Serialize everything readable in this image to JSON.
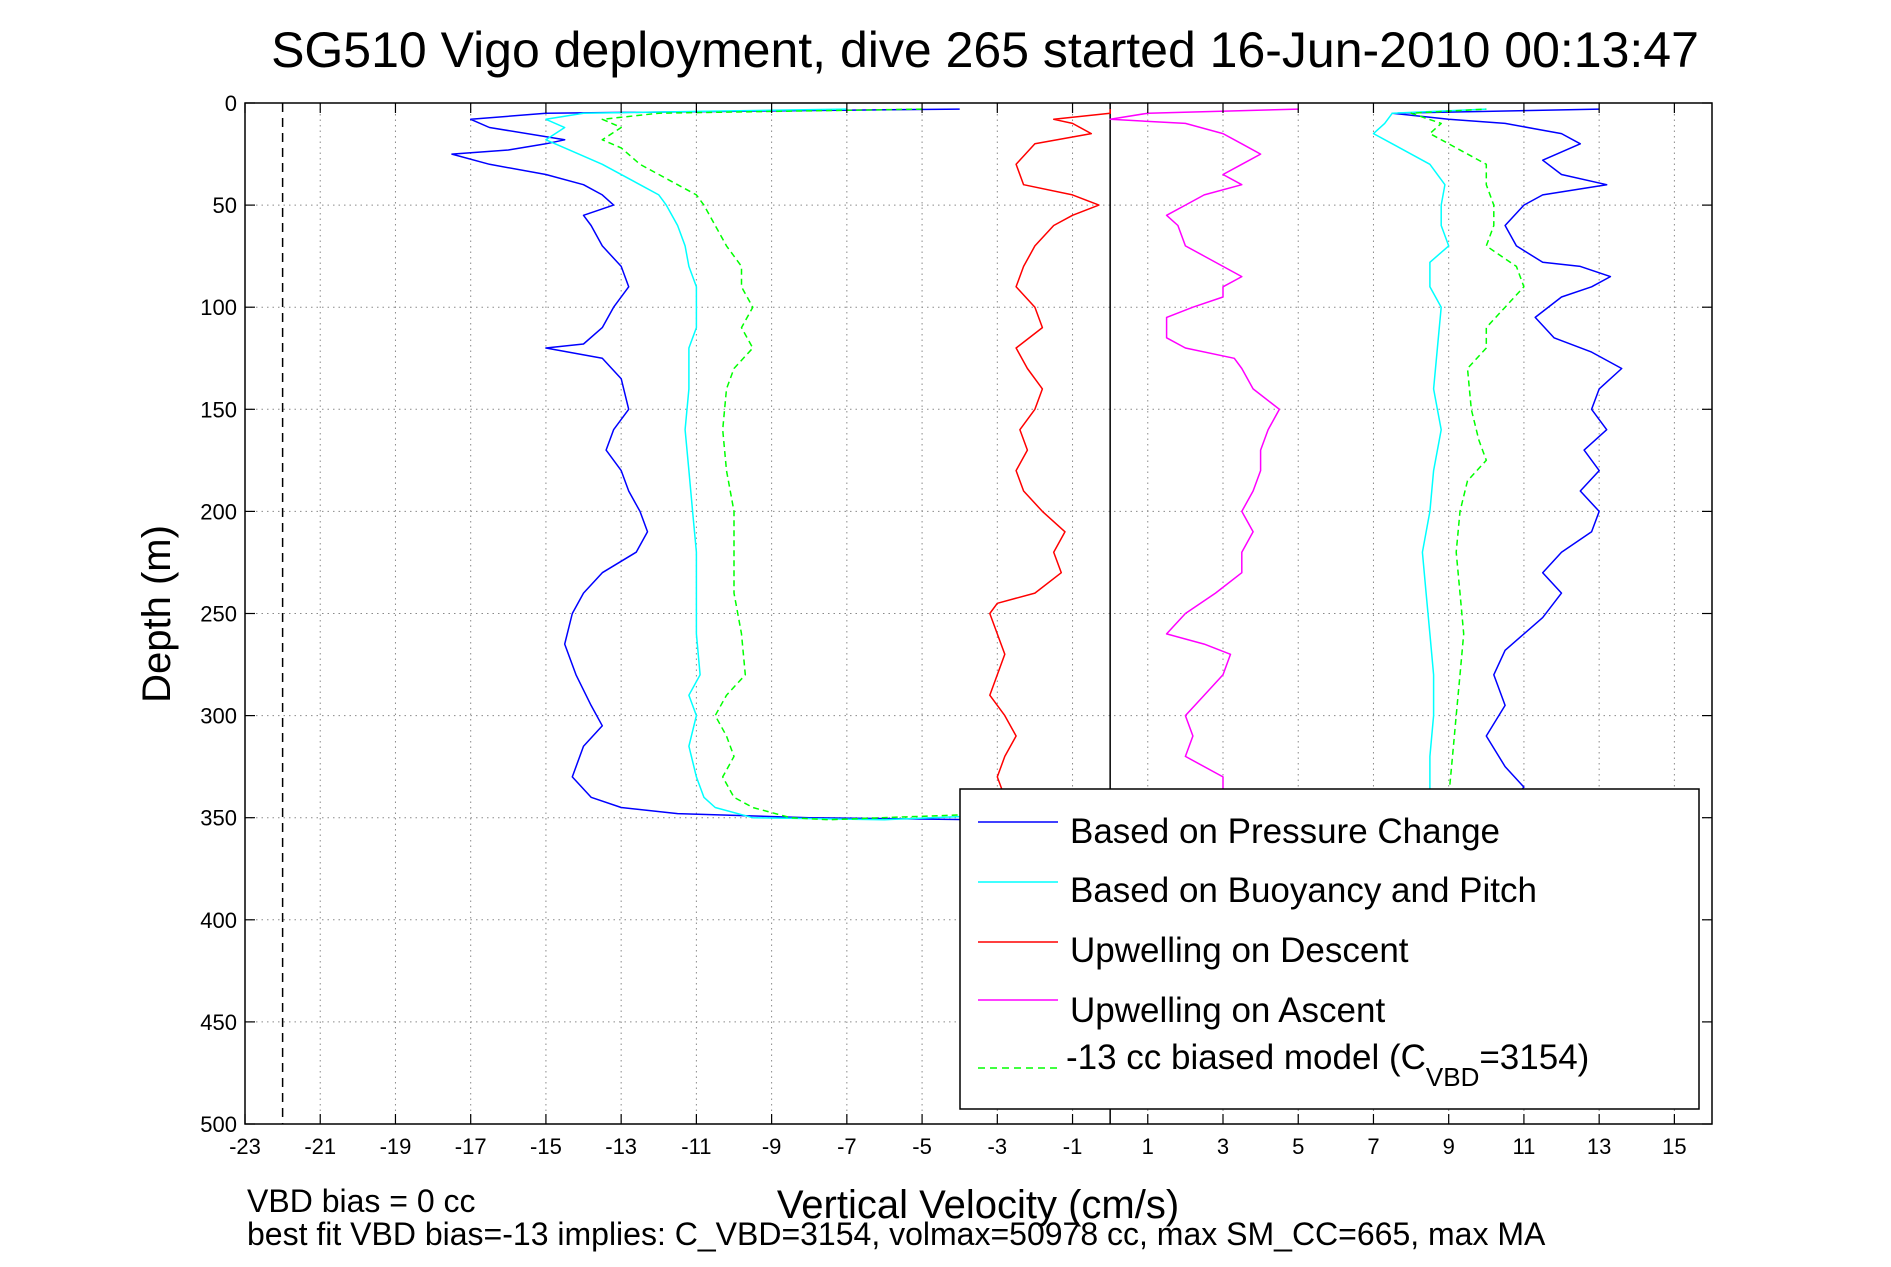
{
  "chart_data": {
    "type": "line",
    "title": "SG510 Vigo deployment, dive 265 started 16-Jun-2010 00:13:47",
    "xlabel": "Vertical Velocity (cm/s)",
    "ylabel": "Depth (m)",
    "xlim": [
      -23,
      16
    ],
    "ylim": [
      0,
      500
    ],
    "y_reversed": true,
    "grid": true,
    "legend_position": "bottom-right",
    "x_ticks": [
      "-23",
      "-21",
      "-19",
      "-17",
      "-15",
      "-13",
      "-11",
      "-9",
      "-7",
      "-5",
      "-3",
      "-1",
      "1",
      "3",
      "5",
      "7",
      "9",
      "11",
      "13",
      "15"
    ],
    "y_ticks": [
      "0",
      "50",
      "100",
      "150",
      "200",
      "250",
      "300",
      "350",
      "400",
      "450",
      "500"
    ],
    "reference_lines": [
      {
        "x": 0,
        "style": "solid",
        "color": "#000000"
      },
      {
        "x": -22,
        "style": "dashed",
        "color": "#000000"
      }
    ],
    "series": [
      {
        "name": "Based on Pressure Change",
        "color": "#0000ff",
        "style": "solid",
        "points": [
          [
            -4,
            3
          ],
          [
            -15,
            5
          ],
          [
            -17,
            8
          ],
          [
            -16.5,
            12
          ],
          [
            -14.5,
            18
          ],
          [
            -15,
            20
          ],
          [
            -16,
            23
          ],
          [
            -17.5,
            25
          ],
          [
            -16.5,
            30
          ],
          [
            -15,
            35
          ],
          [
            -14,
            40
          ],
          [
            -13.5,
            45
          ],
          [
            -13.2,
            50
          ],
          [
            -14,
            55
          ],
          [
            -13.8,
            60
          ],
          [
            -13.5,
            70
          ],
          [
            -13,
            80
          ],
          [
            -12.8,
            90
          ],
          [
            -13.2,
            100
          ],
          [
            -13.5,
            110
          ],
          [
            -14,
            118
          ],
          [
            -15,
            120
          ],
          [
            -13.5,
            125
          ],
          [
            -13,
            135
          ],
          [
            -12.8,
            150
          ],
          [
            -13.2,
            160
          ],
          [
            -13.4,
            170
          ],
          [
            -13,
            180
          ],
          [
            -12.8,
            190
          ],
          [
            -12.5,
            200
          ],
          [
            -12.3,
            210
          ],
          [
            -12.6,
            220
          ],
          [
            -13.5,
            230
          ],
          [
            -14,
            240
          ],
          [
            -14.3,
            250
          ],
          [
            -14.5,
            265
          ],
          [
            -14.2,
            280
          ],
          [
            -13.8,
            295
          ],
          [
            -13.5,
            305
          ],
          [
            -14,
            315
          ],
          [
            -14.3,
            330
          ],
          [
            -13.8,
            340
          ],
          [
            -13,
            345
          ],
          [
            -11.5,
            348
          ],
          [
            -8,
            350
          ],
          [
            -3.5,
            351
          ],
          [
            10.5,
            345
          ],
          [
            11,
            335
          ],
          [
            10.5,
            325
          ],
          [
            10,
            310
          ],
          [
            10.5,
            295
          ],
          [
            10.2,
            280
          ],
          [
            10.5,
            268
          ],
          [
            11,
            260
          ],
          [
            11.5,
            252
          ],
          [
            12,
            240
          ],
          [
            11.5,
            230
          ],
          [
            12,
            220
          ],
          [
            12.8,
            210
          ],
          [
            13,
            200
          ],
          [
            12.5,
            190
          ],
          [
            13,
            180
          ],
          [
            12.6,
            170
          ],
          [
            13.2,
            160
          ],
          [
            12.8,
            150
          ],
          [
            13,
            140
          ],
          [
            13.6,
            130
          ],
          [
            12.8,
            122
          ],
          [
            11.8,
            115
          ],
          [
            11.3,
            105
          ],
          [
            12,
            95
          ],
          [
            12.8,
            90
          ],
          [
            13.3,
            85
          ],
          [
            12.5,
            80
          ],
          [
            11.5,
            78
          ],
          [
            10.8,
            70
          ],
          [
            10.5,
            60
          ],
          [
            11,
            50
          ],
          [
            11.5,
            45
          ],
          [
            13.2,
            40
          ],
          [
            12,
            35
          ],
          [
            11.5,
            28
          ],
          [
            12.5,
            20
          ],
          [
            12,
            15
          ],
          [
            10.5,
            10
          ],
          [
            9,
            8
          ],
          [
            7.5,
            5
          ],
          [
            13,
            3
          ]
        ]
      },
      {
        "name": "Based on Buoyancy and Pitch",
        "color": "#00ffff",
        "style": "solid",
        "points": [
          [
            -7,
            3
          ],
          [
            -14,
            5
          ],
          [
            -15,
            8
          ],
          [
            -14.5,
            12
          ],
          [
            -15,
            18
          ],
          [
            -14.5,
            22
          ],
          [
            -13.5,
            30
          ],
          [
            -12.5,
            40
          ],
          [
            -12,
            45
          ],
          [
            -11.8,
            50
          ],
          [
            -11.5,
            60
          ],
          [
            -11.3,
            70
          ],
          [
            -11.2,
            80
          ],
          [
            -11,
            90
          ],
          [
            -11,
            100
          ],
          [
            -11,
            110
          ],
          [
            -11.2,
            120
          ],
          [
            -11.2,
            140
          ],
          [
            -11.3,
            160
          ],
          [
            -11.2,
            180
          ],
          [
            -11.1,
            200
          ],
          [
            -11,
            220
          ],
          [
            -11,
            240
          ],
          [
            -11,
            260
          ],
          [
            -10.9,
            280
          ],
          [
            -11.2,
            290
          ],
          [
            -11,
            300
          ],
          [
            -11.2,
            315
          ],
          [
            -11,
            330
          ],
          [
            -10.8,
            340
          ],
          [
            -10.5,
            345
          ],
          [
            -9.5,
            350
          ],
          [
            -6,
            351
          ],
          [
            8.5,
            340
          ],
          [
            8.5,
            320
          ],
          [
            8.6,
            300
          ],
          [
            8.6,
            280
          ],
          [
            8.5,
            260
          ],
          [
            8.4,
            240
          ],
          [
            8.3,
            220
          ],
          [
            8.5,
            200
          ],
          [
            8.6,
            180
          ],
          [
            8.8,
            160
          ],
          [
            8.6,
            140
          ],
          [
            8.7,
            120
          ],
          [
            8.8,
            100
          ],
          [
            8.5,
            90
          ],
          [
            8.5,
            78
          ],
          [
            9,
            70
          ],
          [
            8.8,
            60
          ],
          [
            8.8,
            50
          ],
          [
            8.9,
            40
          ],
          [
            8.5,
            30
          ],
          [
            7.5,
            20
          ],
          [
            7,
            15
          ],
          [
            7.3,
            10
          ],
          [
            7.5,
            5
          ],
          [
            10,
            3
          ]
        ]
      },
      {
        "name": "Upwelling on Descent",
        "color": "#ff0000",
        "style": "solid",
        "points": [
          [
            0,
            3
          ],
          [
            0,
            5
          ],
          [
            -1.5,
            8
          ],
          [
            -1,
            10
          ],
          [
            -0.5,
            15
          ],
          [
            -2,
            20
          ],
          [
            -2.5,
            30
          ],
          [
            -2.3,
            40
          ],
          [
            -1,
            45
          ],
          [
            -0.3,
            50
          ],
          [
            -1,
            55
          ],
          [
            -1.5,
            60
          ],
          [
            -2,
            70
          ],
          [
            -2.3,
            80
          ],
          [
            -2.5,
            90
          ],
          [
            -2,
            100
          ],
          [
            -1.8,
            110
          ],
          [
            -2.5,
            120
          ],
          [
            -2.2,
            130
          ],
          [
            -1.8,
            140
          ],
          [
            -2,
            150
          ],
          [
            -2.4,
            160
          ],
          [
            -2.2,
            170
          ],
          [
            -2.5,
            180
          ],
          [
            -2.3,
            190
          ],
          [
            -1.8,
            200
          ],
          [
            -1.2,
            210
          ],
          [
            -1.5,
            220
          ],
          [
            -1.3,
            230
          ],
          [
            -2,
            240
          ],
          [
            -3,
            245
          ],
          [
            -3.2,
            250
          ],
          [
            -3,
            260
          ],
          [
            -2.8,
            270
          ],
          [
            -3,
            280
          ],
          [
            -3.2,
            290
          ],
          [
            -2.8,
            300
          ],
          [
            -2.5,
            310
          ],
          [
            -2.8,
            320
          ],
          [
            -3,
            330
          ],
          [
            -2.8,
            340
          ],
          [
            -3,
            350
          ]
        ]
      },
      {
        "name": "Upwelling on Ascent",
        "color": "#ff00ff",
        "style": "solid",
        "points": [
          [
            3,
            340
          ],
          [
            3,
            330
          ],
          [
            2,
            320
          ],
          [
            2.2,
            310
          ],
          [
            2,
            300
          ],
          [
            2.5,
            290
          ],
          [
            3,
            280
          ],
          [
            3.2,
            270
          ],
          [
            2.5,
            265
          ],
          [
            1.5,
            260
          ],
          [
            2,
            250
          ],
          [
            2.8,
            240
          ],
          [
            3.5,
            230
          ],
          [
            3.5,
            220
          ],
          [
            3.8,
            210
          ],
          [
            3.5,
            200
          ],
          [
            3.8,
            190
          ],
          [
            4,
            180
          ],
          [
            4,
            170
          ],
          [
            4.2,
            160
          ],
          [
            4.5,
            150
          ],
          [
            3.8,
            140
          ],
          [
            3.5,
            130
          ],
          [
            3.3,
            125
          ],
          [
            2,
            120
          ],
          [
            1.5,
            115
          ],
          [
            1.5,
            105
          ],
          [
            2.2,
            100
          ],
          [
            3,
            95
          ],
          [
            3,
            90
          ],
          [
            3.5,
            85
          ],
          [
            3,
            80
          ],
          [
            2.5,
            75
          ],
          [
            2,
            70
          ],
          [
            1.8,
            60
          ],
          [
            1.5,
            55
          ],
          [
            2,
            50
          ],
          [
            2.5,
            45
          ],
          [
            3.5,
            40
          ],
          [
            3,
            35
          ],
          [
            3.5,
            30
          ],
          [
            4,
            25
          ],
          [
            3.5,
            20
          ],
          [
            3,
            15
          ],
          [
            2,
            10
          ],
          [
            0,
            8
          ],
          [
            1,
            5
          ],
          [
            5,
            3
          ]
        ]
      },
      {
        "name": "-13 cc biased model (C_VBD=3154)",
        "color": "#00ff00",
        "style": "dashed",
        "points": [
          [
            -5,
            3
          ],
          [
            -12,
            5
          ],
          [
            -13.5,
            8
          ],
          [
            -13,
            12
          ],
          [
            -13.5,
            18
          ],
          [
            -13,
            22
          ],
          [
            -12.5,
            30
          ],
          [
            -11.5,
            40
          ],
          [
            -11,
            45
          ],
          [
            -10.8,
            50
          ],
          [
            -10.5,
            60
          ],
          [
            -10.2,
            70
          ],
          [
            -9.8,
            80
          ],
          [
            -9.8,
            90
          ],
          [
            -9.5,
            100
          ],
          [
            -9.8,
            110
          ],
          [
            -9.5,
            120
          ],
          [
            -10,
            130
          ],
          [
            -10.2,
            140
          ],
          [
            -10.3,
            160
          ],
          [
            -10.2,
            180
          ],
          [
            -10,
            200
          ],
          [
            -10,
            220
          ],
          [
            -10,
            240
          ],
          [
            -9.8,
            260
          ],
          [
            -9.7,
            280
          ],
          [
            -10.2,
            290
          ],
          [
            -10.5,
            300
          ],
          [
            -10.2,
            310
          ],
          [
            -10,
            320
          ],
          [
            -10.3,
            330
          ],
          [
            -10,
            340
          ],
          [
            -9.5,
            345
          ],
          [
            -8.5,
            350
          ],
          [
            -7.5,
            351
          ],
          [
            9,
            340
          ],
          [
            9.1,
            320
          ],
          [
            9.2,
            300
          ],
          [
            9.3,
            280
          ],
          [
            9.4,
            260
          ],
          [
            9.3,
            240
          ],
          [
            9.2,
            220
          ],
          [
            9.3,
            200
          ],
          [
            9.5,
            185
          ],
          [
            10,
            175
          ],
          [
            9.8,
            165
          ],
          [
            9.6,
            150
          ],
          [
            9.5,
            130
          ],
          [
            10,
            120
          ],
          [
            10,
            110
          ],
          [
            10.5,
            100
          ],
          [
            11,
            90
          ],
          [
            10.8,
            80
          ],
          [
            10,
            70
          ],
          [
            10.2,
            60
          ],
          [
            10.2,
            50
          ],
          [
            10,
            40
          ],
          [
            10,
            30
          ],
          [
            9,
            20
          ],
          [
            8.5,
            15
          ],
          [
            8.8,
            10
          ],
          [
            8,
            5
          ],
          [
            10,
            3
          ]
        ]
      }
    ]
  },
  "annotations": {
    "vbd_bias": "VBD bias = 0 cc",
    "best_fit": "best fit VBD bias=-13 implies: C_VBD=3154, volmax=50978 cc, max SM_CC=665, max MA"
  },
  "legend": {
    "items": [
      {
        "label": "Based on Pressure Change",
        "sub": "",
        "tail": ""
      },
      {
        "label": "Based on Buoyancy and Pitch",
        "sub": "",
        "tail": ""
      },
      {
        "label": "Upwelling on Descent",
        "sub": "",
        "tail": ""
      },
      {
        "label": "Upwelling on Ascent",
        "sub": "",
        "tail": ""
      },
      {
        "label": "-13 cc biased model (C",
        "sub": "VBD",
        "tail": "=3154)"
      }
    ]
  }
}
